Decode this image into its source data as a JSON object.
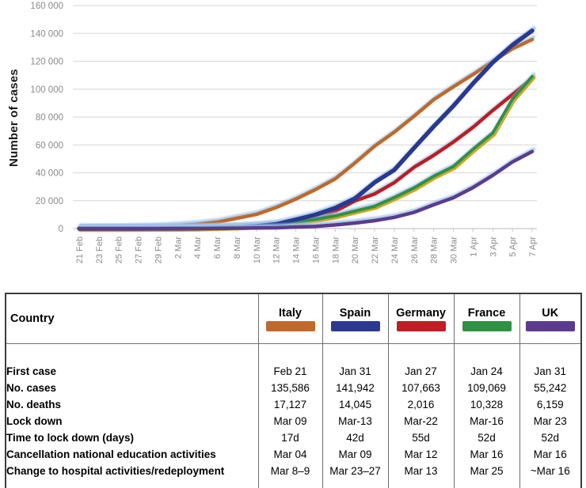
{
  "chart_data": {
    "type": "line",
    "title": "",
    "xlabel": "",
    "ylabel": "Number of cases",
    "ylim": [
      0,
      160000
    ],
    "grid": "horizontal",
    "legend_position": "table-below",
    "y_ticks": [
      "0",
      "20 000",
      "40 000",
      "60 000",
      "80 000",
      "100 000",
      "120 000",
      "140 000",
      "160 000"
    ],
    "categories": [
      "21 Feb",
      "23 Feb",
      "25 Feb",
      "27 Feb",
      "29 Feb",
      "2 Mar",
      "4 Mar",
      "6 Mar",
      "8 Mar",
      "10 Mar",
      "12 Mar",
      "14 Mar",
      "16 Mar",
      "18 Mar",
      "20 Mar",
      "22 Mar",
      "24 Mar",
      "26 Mar",
      "28 Mar",
      "30 Mar",
      "1 Apr",
      "3 Apr",
      "5 Apr",
      "7 Apr"
    ],
    "series": [
      {
        "name": "Italy",
        "color": "#C0692B",
        "width": 4.5,
        "values": [
          20,
          157,
          323,
          655,
          1128,
          2036,
          3089,
          4636,
          7375,
          10149,
          15113,
          21157,
          27980,
          35713,
          47021,
          59138,
          69176,
          80589,
          92472,
          101739,
          110574,
          119827,
          128948,
          135586
        ]
      },
      {
        "name": "Germany",
        "color": "#BE1E24",
        "width": 4.5,
        "values": [
          16,
          16,
          17,
          26,
          66,
          159,
          262,
          670,
          1040,
          1457,
          2369,
          4585,
          7272,
          12327,
          19848,
          24873,
          32986,
          43938,
          52547,
          62095,
          72677,
          84794,
          96092,
          107663
        ]
      },
      {
        "name": "France",
        "color": "#2E9245",
        "width": 4,
        "underlay": "#D6A21E",
        "values": [
          12,
          12,
          14,
          38,
          100,
          191,
          285,
          653,
          1126,
          1784,
          2876,
          4499,
          6633,
          9134,
          12612,
          16018,
          22302,
          29155,
          37575,
          44550,
          56989,
          68605,
          92839,
          109069
        ]
      },
      {
        "name": "Spain",
        "color": "#2B3990",
        "width": 5.5,
        "values": [
          2,
          2,
          6,
          15,
          45,
          120,
          222,
          400,
          673,
          1695,
          3146,
          6391,
          9942,
          14769,
          21571,
          33089,
          42058,
          57786,
          73235,
          87956,
          104118,
          119199,
          131646,
          141942
        ]
      },
      {
        "name": "UK",
        "color": "#5B3B8F",
        "width": 4.5,
        "values": [
          9,
          9,
          13,
          15,
          23,
          36,
          85,
          163,
          273,
          373,
          590,
          1140,
          1543,
          2626,
          3983,
          5683,
          8077,
          11658,
          17089,
          22141,
          29474,
          38168,
          47806,
          55242
        ]
      }
    ],
    "shadow_color": "#9DC3E6",
    "grid_color": "#DCDCDC",
    "axis_text_color": "#8A8A8A"
  },
  "table": {
    "header": {
      "country_label": "Country",
      "countries": [
        {
          "name": "Italy",
          "color": "#C0692B"
        },
        {
          "name": "Spain",
          "color": "#2B3990"
        },
        {
          "name": "Germany",
          "color": "#BE1E24"
        },
        {
          "name": "France",
          "color": "#2E9245"
        },
        {
          "name": "UK",
          "color": "#5B3B8F"
        }
      ]
    },
    "rows": [
      {
        "label": "First case",
        "values": [
          "Feb 21",
          "Jan 31",
          "Jan 27",
          "Jan 24",
          "Jan 31"
        ]
      },
      {
        "label": "No. cases",
        "values": [
          "135,586",
          "141,942",
          "107,663",
          "109,069",
          "55,242"
        ]
      },
      {
        "label": "No. deaths",
        "values": [
          "17,127",
          "14,045",
          "2,016",
          "10,328",
          "6,159"
        ]
      },
      {
        "label": "Lock down",
        "values": [
          "Mar 09",
          "Mar-13",
          "Mar-22",
          "Mar-16",
          "Mar 23"
        ]
      },
      {
        "label": "Time to lock down (days)",
        "values": [
          "17d",
          "42d",
          "55d",
          "52d",
          "52d"
        ]
      },
      {
        "label": "Cancellation national education activities",
        "values": [
          "Mar 04",
          "Mar 09",
          "Mar 12",
          "Mar 16",
          "Mar 16"
        ]
      },
      {
        "label": "Change to hospital activities/redeployment",
        "values": [
          "Mar 8–9",
          "Mar 23–27",
          "Mar 13",
          "Mar 25",
          "~Mar 16"
        ]
      }
    ]
  }
}
